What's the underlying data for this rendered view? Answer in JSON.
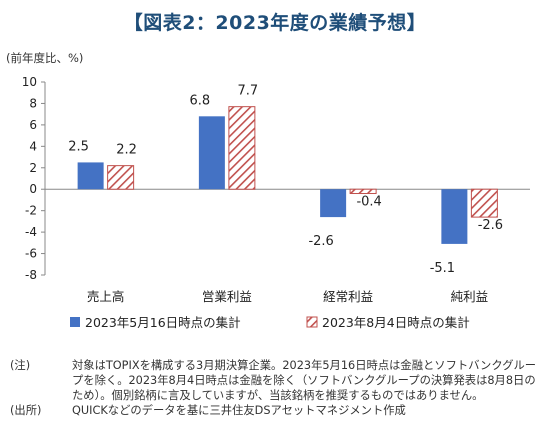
{
  "title": "【図表2：2023年度の業績予想】",
  "chart_data": {
    "type": "bar",
    "ylabel": "(前年度比、%)",
    "ylim": [
      -8,
      10
    ],
    "yticks": [
      10,
      8,
      6,
      4,
      2,
      0,
      -2,
      -4,
      -6,
      -8
    ],
    "categories": [
      "売上高",
      "営業利益",
      "経常利益",
      "純利益"
    ],
    "series": [
      {
        "name": "2023年5月16日時点の集計",
        "values": [
          2.5,
          6.8,
          -2.6,
          -5.1
        ],
        "labels": [
          "2.5",
          "6.8",
          "-2.6",
          "-5.1"
        ],
        "color": "#4472c4",
        "fill": "solid"
      },
      {
        "name": "2023年8月4日時点の集計",
        "values": [
          2.2,
          7.7,
          -0.4,
          -2.6
        ],
        "labels": [
          "2.2",
          "7.7",
          "-0.4",
          "-2.6"
        ],
        "color": "#c0504d",
        "fill": "hatched"
      }
    ],
    "grid": false,
    "legend_position": "bottom"
  },
  "notes": [
    {
      "tag": "(注)",
      "text": "対象はTOPIXを構成する3月期決算企業。2023年5月16日時点は金融とソフトバンクグループを除く。2023年8月4日時点は金融を除く（ソフトバンクグループの決算発表は8月8日のため）。個別銘柄に言及していますが、当該銘柄を推奨するものではありません。"
    },
    {
      "tag": "(出所)",
      "text": "QUICKなどのデータを基に三井住友DSアセットマネジメント作成"
    }
  ]
}
